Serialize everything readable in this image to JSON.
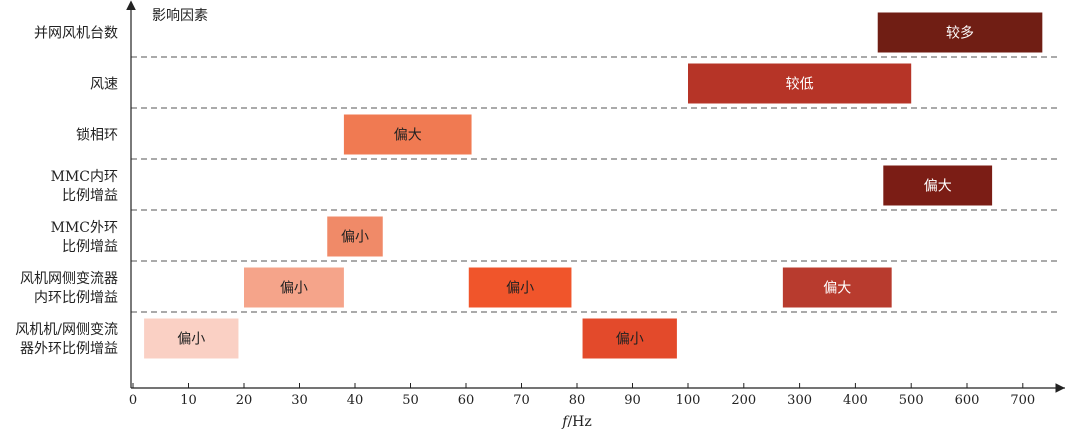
{
  "chart_data": {
    "type": "bar",
    "orientation": "horizontal-range",
    "title": "",
    "ylabel": "影响因素",
    "xlabel_italic": "f",
    "xlabel_unit": "/Hz",
    "x_ticks": [
      "0",
      "10",
      "20",
      "30",
      "40",
      "50",
      "60",
      "70",
      "80",
      "90",
      "100",
      "200",
      "300",
      "400",
      "500",
      "600",
      "700"
    ],
    "grid": "dashed separators between rows",
    "rows": [
      {
        "label_lines": [
          "并网风机台数"
        ]
      },
      {
        "label_lines": [
          "风速"
        ]
      },
      {
        "label_lines": [
          "锁相环"
        ]
      },
      {
        "label_lines": [
          "MMC内环",
          "比例增益"
        ]
      },
      {
        "label_lines": [
          "MMC外环",
          "比例增益"
        ]
      },
      {
        "label_lines": [
          "风机网侧变流器",
          "内环比例增益"
        ]
      },
      {
        "label_lines": [
          "风机机/网侧变流",
          "器外环比例增益"
        ]
      }
    ],
    "bars": [
      {
        "row": 0,
        "start": 440,
        "end": 735,
        "label": "较多",
        "color": "#701e14",
        "text_color": "#ffffff"
      },
      {
        "row": 1,
        "start": 100,
        "end": 500,
        "label": "较低",
        "color": "#b63427",
        "text_color": "#ffffff"
      },
      {
        "row": 2,
        "start": 38,
        "end": 61,
        "label": "偏大",
        "color": "#f07a52",
        "text_color": "#222222"
      },
      {
        "row": 3,
        "start": 450,
        "end": 645,
        "label": "偏大",
        "color": "#7b1d15",
        "text_color": "#ffffff"
      },
      {
        "row": 4,
        "start": 35,
        "end": 45,
        "label": "偏小",
        "color": "#f08a68",
        "text_color": "#222222"
      },
      {
        "row": 5,
        "start": 20,
        "end": 38,
        "label": "偏小",
        "color": "#f5a48a",
        "text_color": "#222222"
      },
      {
        "row": 5,
        "start": 60.5,
        "end": 79,
        "label": "偏小",
        "color": "#f0552b",
        "text_color": "#222222"
      },
      {
        "row": 5,
        "start": 270,
        "end": 465,
        "label": "偏大",
        "color": "#b83b2e",
        "text_color": "#ffffff"
      },
      {
        "row": 6,
        "start": 2,
        "end": 19,
        "label": "偏小",
        "color": "#fad0c4",
        "text_color": "#222222"
      },
      {
        "row": 6,
        "start": 81,
        "end": 98,
        "label": "偏小",
        "color": "#e34a2b",
        "text_color": "#222222"
      }
    ]
  }
}
